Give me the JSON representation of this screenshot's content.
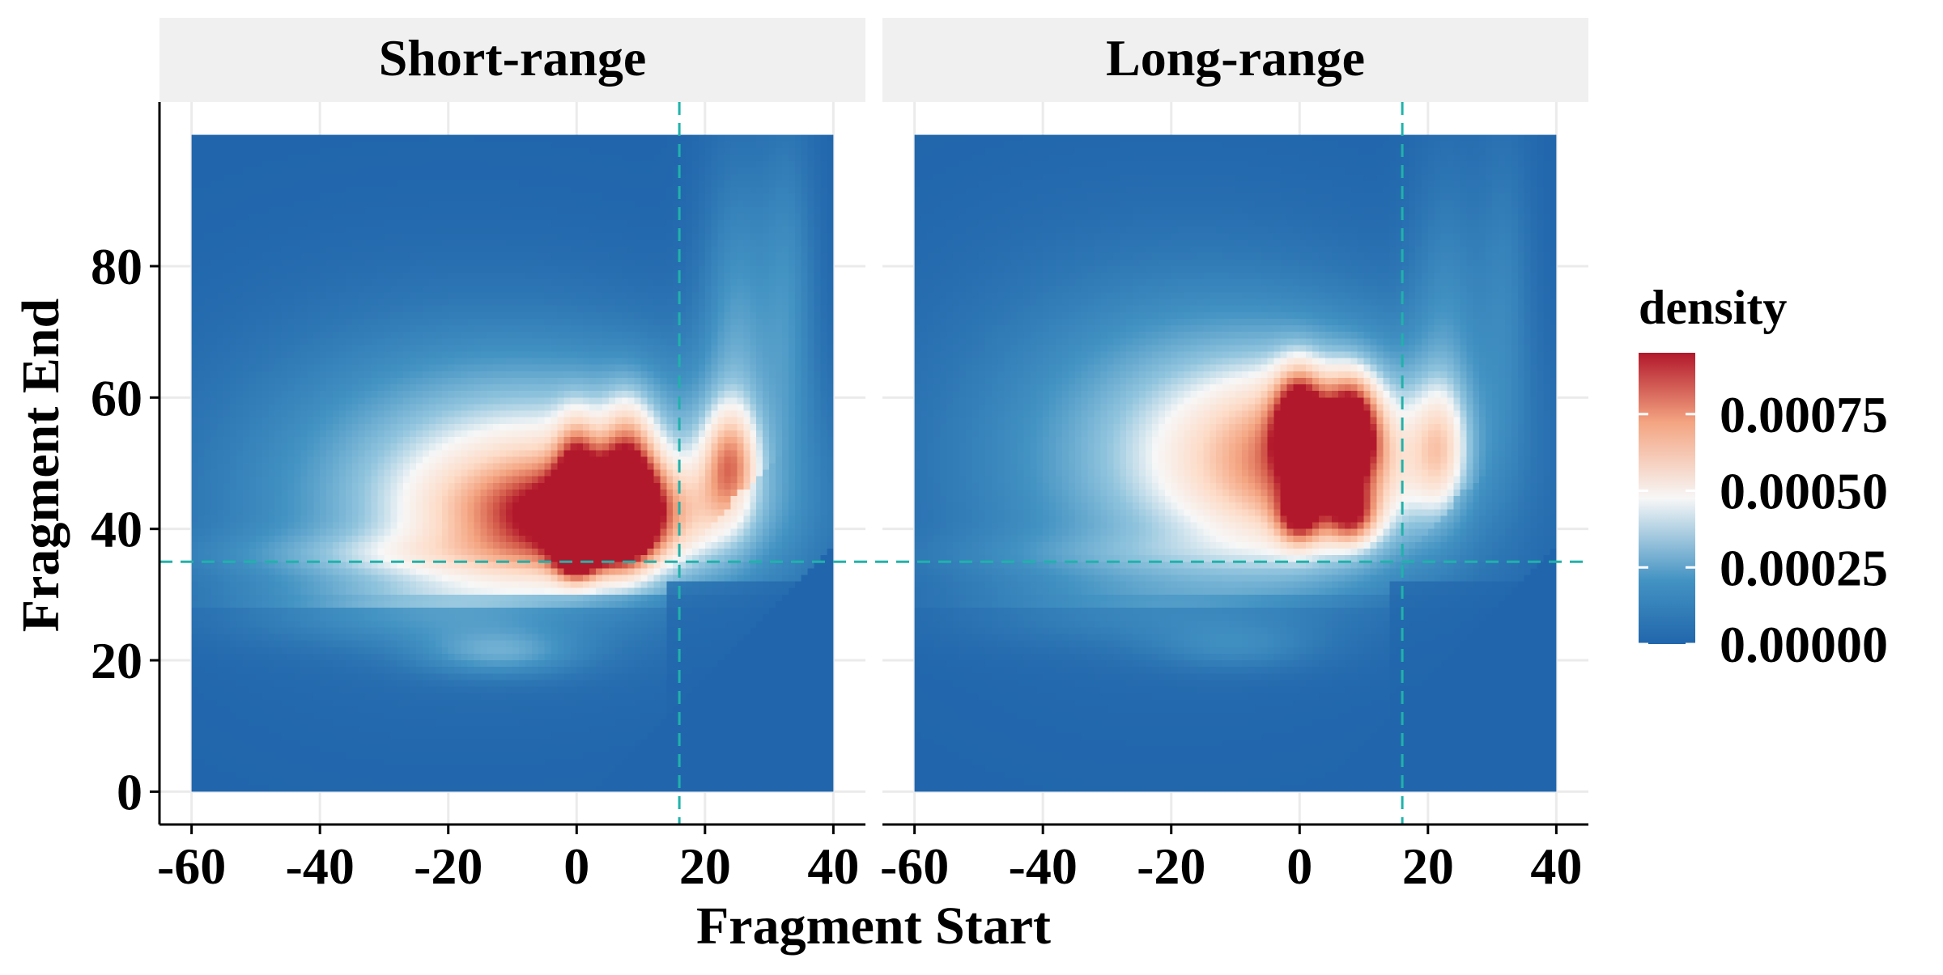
{
  "chart_data": {
    "type": "heatmap",
    "xlabel": "Fragment Start",
    "ylabel": "Fragment End",
    "xlim": [
      -65,
      45
    ],
    "ylim": [
      -5,
      105
    ],
    "xticks": [
      -60,
      -40,
      -20,
      0,
      20,
      40
    ],
    "xtick_labels": [
      "-60",
      "-40",
      "-20",
      "0",
      "20",
      "40"
    ],
    "yticks": [
      0,
      20,
      40,
      60,
      80
    ],
    "ytick_labels": [
      "0",
      "20",
      "40",
      "60",
      "80"
    ],
    "grid": true,
    "reference_lines": {
      "x": 16,
      "y": 35
    },
    "legend": {
      "title": "density",
      "position": "right",
      "range": [
        0,
        0.00095
      ],
      "ticks": [
        0,
        0.00025,
        0.0005,
        0.00075
      ],
      "tick_labels": [
        "0.00000",
        "0.00025",
        "0.00050",
        "0.00075"
      ]
    },
    "panels": [
      {
        "title": "Short-range",
        "max_density": 0.00095,
        "peaks": [
          {
            "x": 0,
            "y": 41,
            "density": 0.00088
          },
          {
            "x": 7,
            "y": 42,
            "density": 0.00095
          },
          {
            "x": 0,
            "y": 36,
            "density": 0.0006
          },
          {
            "x": 23,
            "y": 48,
            "density": 0.00045
          },
          {
            "x": -12,
            "y": 21,
            "density": 0.0003
          }
        ]
      },
      {
        "title": "Long-range",
        "max_density": 0.00082,
        "peaks": [
          {
            "x": 0,
            "y": 56,
            "density": 0.0008
          },
          {
            "x": 8,
            "y": 55,
            "density": 0.00082
          },
          {
            "x": 0,
            "y": 41,
            "density": 0.00062
          },
          {
            "x": 8,
            "y": 42,
            "density": 0.00058
          },
          {
            "x": 22,
            "y": 52,
            "density": 0.00035
          },
          {
            "x": -10,
            "y": 22,
            "density": 0.00022
          }
        ]
      }
    ],
    "colors": {
      "low": "#2166ac",
      "mid_low": "#4393c3",
      "mid": "#f7f7f7",
      "mid_high": "#f4a582",
      "high": "#b2182b",
      "reference_line": "#20b2aa",
      "strip_background": "#f0f0f0",
      "grid": "#ebebeb"
    }
  }
}
